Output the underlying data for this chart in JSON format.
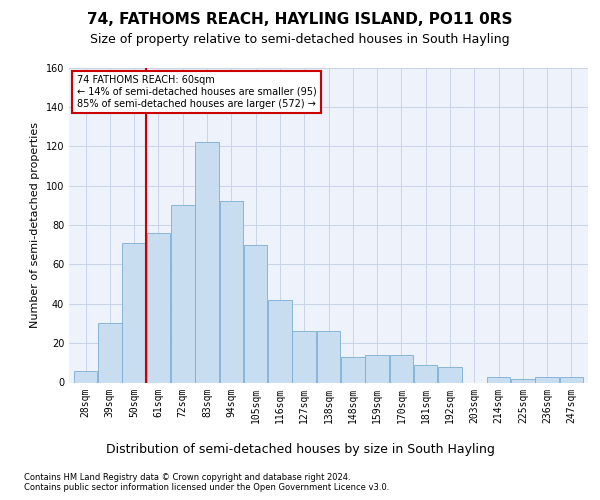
{
  "title": "74, FATHOMS REACH, HAYLING ISLAND, PO11 0RS",
  "subtitle": "Size of property relative to semi-detached houses in South Hayling",
  "xlabel_dist": "Distribution of semi-detached houses by size in South Hayling",
  "ylabel": "Number of semi-detached properties",
  "footer1": "Contains HM Land Registry data © Crown copyright and database right 2024.",
  "footer2": "Contains public sector information licensed under the Open Government Licence v3.0.",
  "categories": [
    "28sqm",
    "39sqm",
    "50sqm",
    "61sqm",
    "72sqm",
    "83sqm",
    "94sqm",
    "105sqm",
    "116sqm",
    "127sqm",
    "138sqm",
    "148sqm",
    "159sqm",
    "170sqm",
    "181sqm",
    "192sqm",
    "203sqm",
    "214sqm",
    "225sqm",
    "236sqm",
    "247sqm"
  ],
  "bar_values": [
    6,
    30,
    71,
    76,
    90,
    122,
    92,
    70,
    42,
    26,
    26,
    13,
    14,
    14,
    9,
    8,
    0,
    3,
    2,
    3,
    3
  ],
  "bar_color": "#c9ddf0",
  "bar_edge_color": "#7aadd4",
  "vline_x_idx": 3,
  "vline_color": "#cc0000",
  "annotation_line1": "74 FATHOMS REACH: 60sqm",
  "annotation_line2": "← 14% of semi-detached houses are smaller (95)",
  "annotation_line3": "85% of semi-detached houses are larger (572) →",
  "ylim": [
    0,
    160
  ],
  "yticks": [
    0,
    20,
    40,
    60,
    80,
    100,
    120,
    140,
    160
  ],
  "grid_color": "#c8d4e8",
  "bg_color": "#eef2fa",
  "title_fontsize": 11,
  "subtitle_fontsize": 9,
  "ylabel_fontsize": 8,
  "tick_fontsize": 7,
  "footer_fontsize": 6
}
